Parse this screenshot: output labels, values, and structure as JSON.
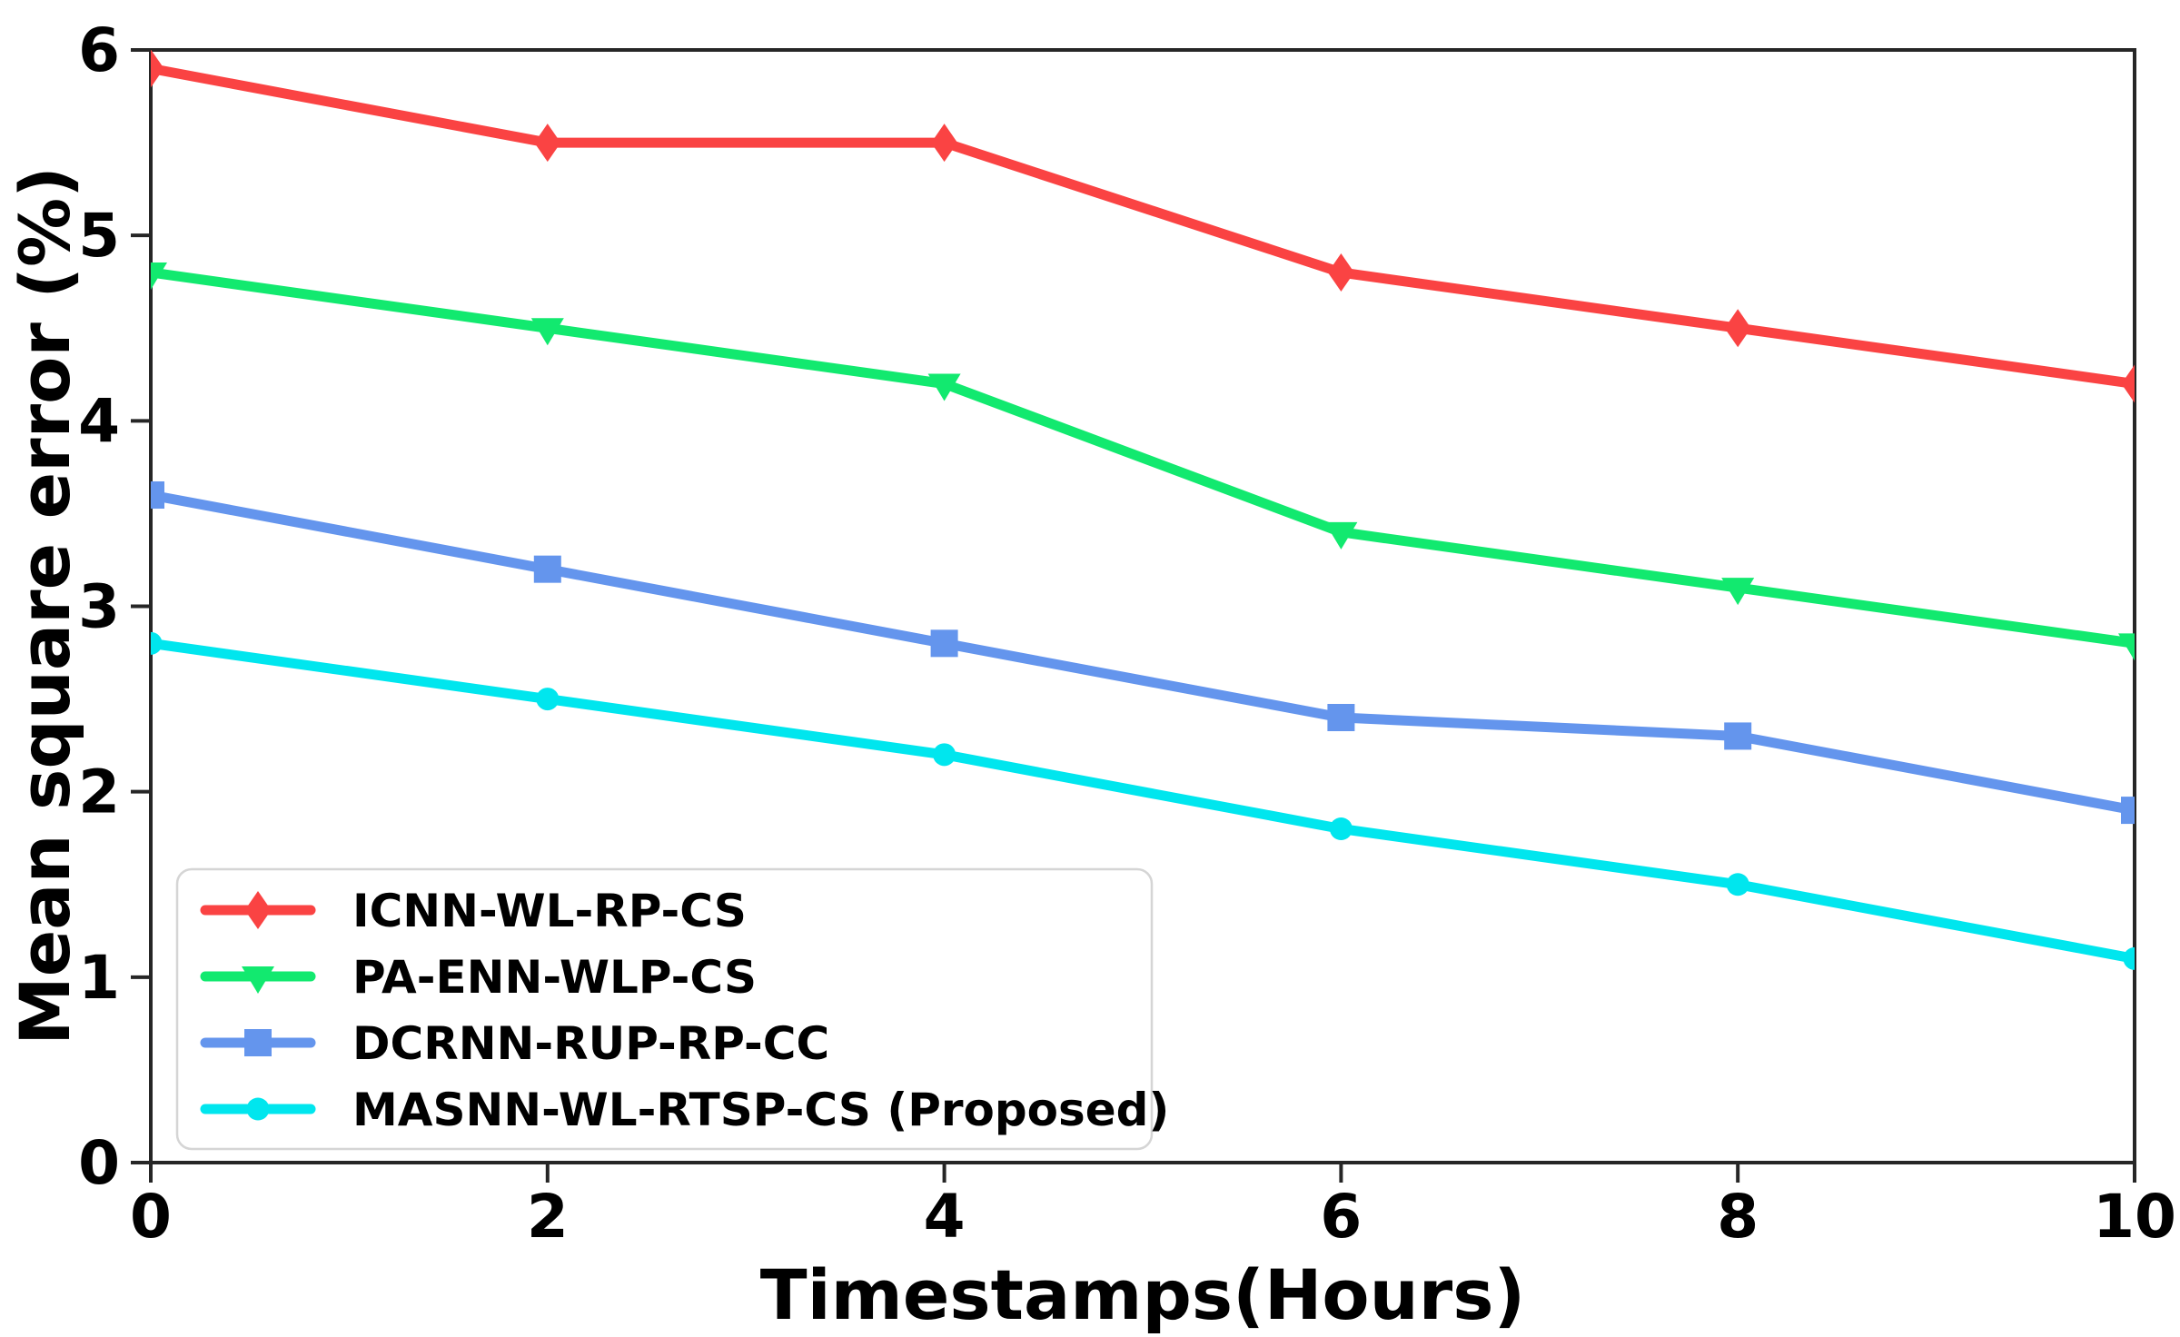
{
  "chart_data": {
    "type": "line",
    "title": "",
    "xlabel": "Timestamps(Hours)",
    "ylabel": "Mean square error (%)",
    "x": [
      0,
      2,
      4,
      6,
      8,
      10
    ],
    "xticks": [
      0,
      2,
      4,
      6,
      8,
      10
    ],
    "yticks": [
      0,
      1,
      2,
      3,
      4,
      5,
      6
    ],
    "xlim": [
      0,
      10
    ],
    "ylim": [
      0,
      6
    ],
    "grid": false,
    "legend_position": "lower-left",
    "series": [
      {
        "name": "ICNN-WL-RP-CS",
        "color": "#FA4343",
        "marker": "diamond",
        "values": [
          5.9,
          5.5,
          5.5,
          4.8,
          4.5,
          4.2
        ]
      },
      {
        "name": "PA-ENN-WLP-CS",
        "color": "#12E96F",
        "marker": "triangle-down",
        "values": [
          4.8,
          4.5,
          4.2,
          3.4,
          3.1,
          2.8
        ]
      },
      {
        "name": "DCRNN-RUP-RP-CC",
        "color": "#6495ED",
        "marker": "square",
        "values": [
          3.6,
          3.2,
          2.8,
          2.4,
          2.3,
          1.9
        ]
      },
      {
        "name": "MASNN-WL-RTSP-CS (Proposed)",
        "color": "#00E6EE",
        "marker": "circle",
        "values": [
          2.8,
          2.5,
          2.2,
          1.8,
          1.5,
          1.1
        ]
      }
    ],
    "frame_color": "#262626",
    "legend_border_color": "#d5d5d5"
  }
}
